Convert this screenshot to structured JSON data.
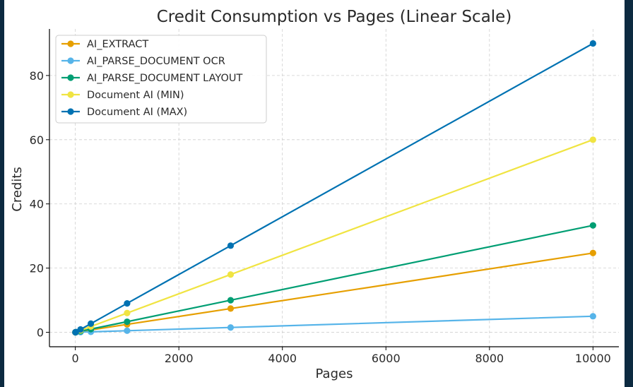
{
  "colors": {
    "background": "#0c2a40",
    "plot_background": "#ffffff",
    "grid": "#cfcfcf",
    "axis": "#000000"
  },
  "chart_data": {
    "type": "line",
    "title": "Credit Consumption vs Pages (Linear Scale)",
    "xlabel": "Pages",
    "ylabel": "Credits",
    "xlim": [
      -500,
      10500
    ],
    "ylim": [
      -4.5,
      94.5
    ],
    "xticks": [
      0,
      2000,
      4000,
      6000,
      8000,
      10000
    ],
    "yticks": [
      0,
      20,
      40,
      60,
      80
    ],
    "xtick_labels": [
      "0",
      "2000",
      "4000",
      "6000",
      "8000",
      "10000"
    ],
    "ytick_labels": [
      "0",
      "20",
      "40",
      "60",
      "80"
    ],
    "grid": true,
    "grid_style": "dashed",
    "legend_position": "top-left",
    "x": [
      1,
      10,
      100,
      300,
      1000,
      3000,
      10000
    ],
    "series": [
      {
        "name": "AI_EXTRACT",
        "color": "#e69f00",
        "values": [
          0.002,
          0.025,
          0.25,
          0.74,
          2.47,
          7.4,
          24.7
        ]
      },
      {
        "name": "AI_PARSE_DOCUMENT OCR",
        "color": "#56b4e9",
        "values": [
          0.0005,
          0.005,
          0.05,
          0.15,
          0.5,
          1.5,
          5.0
        ]
      },
      {
        "name": "AI_PARSE_DOCUMENT LAYOUT",
        "color": "#009e73",
        "values": [
          0.003,
          0.033,
          0.33,
          1.0,
          3.3,
          10.0,
          33.3
        ]
      },
      {
        "name": "Document AI (MIN)",
        "color": "#f0e442",
        "values": [
          0.006,
          0.06,
          0.6,
          1.8,
          6.0,
          18.0,
          60.0
        ]
      },
      {
        "name": "Document AI (MAX)",
        "color": "#0072b2",
        "values": [
          0.009,
          0.09,
          0.9,
          2.7,
          9.0,
          27.0,
          90.0
        ]
      }
    ]
  }
}
